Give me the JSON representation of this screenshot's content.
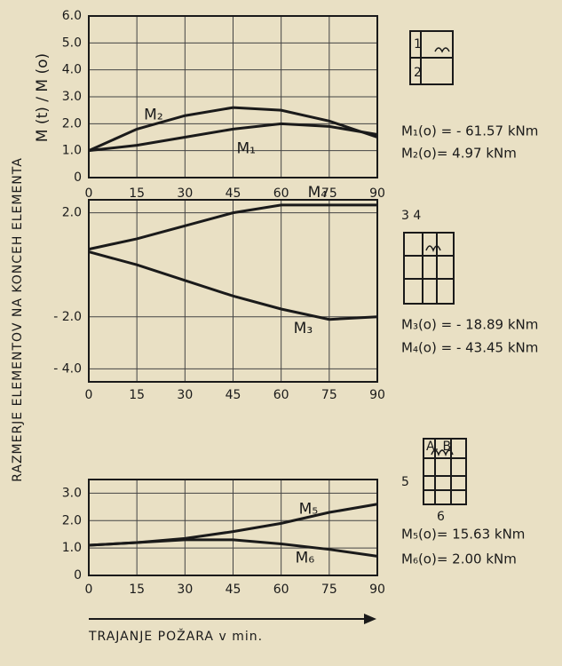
{
  "y_axis_label": "RAZMERJE ELEMENTOV NA KONCEH ELEMENTA",
  "y_axis_unit": "M (t) / M (o)",
  "x_axis_label": "TRAJANJE POŽARA v min.",
  "chart_data": [
    {
      "type": "line",
      "x": [
        0,
        15,
        30,
        45,
        60,
        75,
        90
      ],
      "xlim": [
        0,
        90
      ],
      "xticks": [
        0,
        15,
        30,
        45,
        60,
        75,
        90
      ],
      "ylim": [
        0,
        6
      ],
      "yticks": [
        {
          "value": 0,
          "label": "0"
        },
        {
          "value": 1,
          "label": "1.0"
        },
        {
          "value": 2,
          "label": "2.0"
        },
        {
          "value": 3,
          "label": "3.0"
        },
        {
          "value": 4,
          "label": "4.0"
        },
        {
          "value": 5,
          "label": "5.0"
        },
        {
          "value": 6,
          "label": "6.0"
        }
      ],
      "grid": true,
      "series": [
        {
          "name": "M₂",
          "color": "#1a1a1a",
          "values": [
            1.0,
            1.8,
            2.3,
            2.6,
            2.5,
            2.1,
            1.5
          ]
        },
        {
          "name": "M₁",
          "color": "#1a1a1a",
          "values": [
            1.0,
            1.2,
            1.5,
            1.8,
            2.0,
            1.9,
            1.6
          ]
        }
      ],
      "annotations": [
        "M₁(o) = - 61.57 kNm",
        "M₂(o)=  4.97 kNm"
      ],
      "diagram_labels": [
        "1",
        "2"
      ]
    },
    {
      "type": "line",
      "x": [
        0,
        15,
        30,
        45,
        60,
        75,
        90
      ],
      "xlim": [
        0,
        90
      ],
      "xticks": [
        0,
        15,
        30,
        45,
        60,
        75,
        90
      ],
      "ylim": [
        -4.5,
        2.5
      ],
      "yticks": [
        {
          "value": 2,
          "label": "2.0"
        },
        {
          "value": -2,
          "label": "- 2.0"
        },
        {
          "value": -4,
          "label": "- 4.0"
        }
      ],
      "grid": true,
      "series": [
        {
          "name": "M₄",
          "color": "#1a1a1a",
          "values": [
            0.6,
            1.0,
            1.5,
            2.0,
            2.3,
            2.3,
            2.3
          ]
        },
        {
          "name": "M₃",
          "color": "#1a1a1a",
          "values": [
            0.5,
            0.0,
            -0.6,
            -1.2,
            -1.7,
            -2.1,
            -2.0
          ]
        }
      ],
      "annotations": [
        "M₃(o) = - 18.89 kNm",
        "M₄(o) = - 43.45 kNm"
      ],
      "diagram_labels": [
        "3 4"
      ]
    },
    {
      "type": "line",
      "x": [
        0,
        15,
        30,
        45,
        60,
        75,
        90
      ],
      "xlim": [
        0,
        90
      ],
      "xticks": [
        0,
        15,
        30,
        45,
        60,
        75,
        90
      ],
      "ylim": [
        0,
        3.5
      ],
      "yticks": [
        0,
        {
          "value": 1,
          "label": "1.0"
        },
        {
          "value": 2,
          "label": "2.0"
        },
        {
          "value": 3,
          "label": "3.0"
        }
      ],
      "grid": true,
      "series": [
        {
          "name": "M₅",
          "color": "#1a1a1a",
          "values": [
            1.1,
            1.2,
            1.35,
            1.6,
            1.9,
            2.3,
            2.6
          ]
        },
        {
          "name": "M₆",
          "color": "#1a1a1a",
          "values": [
            1.1,
            1.2,
            1.3,
            1.3,
            1.15,
            0.95,
            0.7
          ]
        }
      ],
      "annotations": [
        "M₅(o)=   15.63 kNm",
        "M₆(o)=   2.00 kNm"
      ],
      "diagram_labels": [
        "5",
        "6",
        "A, B"
      ]
    }
  ]
}
